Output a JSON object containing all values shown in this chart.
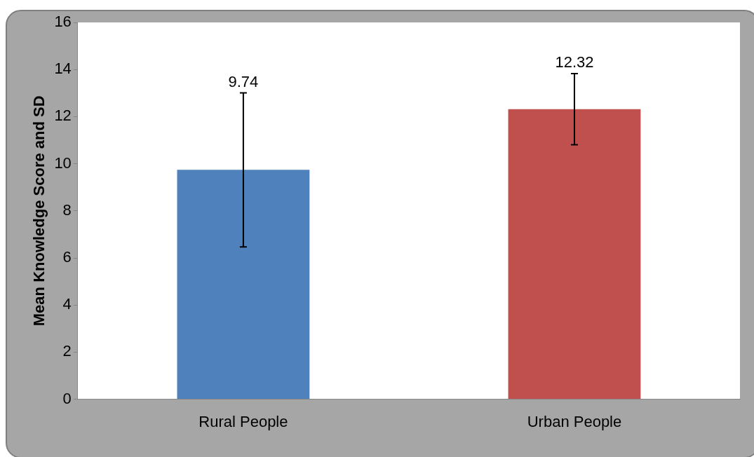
{
  "chart_data": {
    "type": "bar",
    "ylabel": "Mean Knowledge Score and SD",
    "categories": [
      "Rural People",
      "Urban People"
    ],
    "values": [
      9.74,
      12.32
    ],
    "colors": [
      "#4f81bd",
      "#c0504d"
    ],
    "errors": [
      3.27,
      1.51
    ],
    "annotations": [
      {
        "text": "9.74",
        "x": "Rural People",
        "y": 13.01
      },
      {
        "text": "12.32",
        "x": "Urban People",
        "y": 13.83
      }
    ],
    "ylim": [
      0,
      16
    ],
    "yticks": [
      0,
      2,
      4,
      6,
      8,
      10,
      12,
      14,
      16
    ],
    "grid": false,
    "legend": false
  }
}
